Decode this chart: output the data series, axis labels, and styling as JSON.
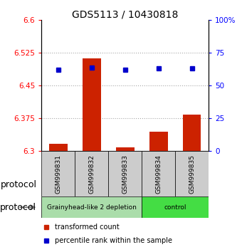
{
  "title": "GDS5113 / 10430818",
  "samples": [
    "GSM999831",
    "GSM999832",
    "GSM999833",
    "GSM999834",
    "GSM999835"
  ],
  "transformed_counts": [
    6.317,
    6.513,
    6.308,
    6.345,
    6.383
  ],
  "percentile_ranks": [
    62,
    64,
    62,
    63,
    63
  ],
  "ylim_left": [
    6.3,
    6.6
  ],
  "ylim_right": [
    0,
    100
  ],
  "yticks_left": [
    6.3,
    6.375,
    6.45,
    6.525,
    6.6
  ],
  "yticks_right": [
    0,
    25,
    50,
    75,
    100
  ],
  "ytick_labels_left": [
    "6.3",
    "6.375",
    "6.45",
    "6.525",
    "6.6"
  ],
  "ytick_labels_right": [
    "0",
    "25",
    "50",
    "75",
    "100%"
  ],
  "groups": [
    {
      "label": "Grainyhead-like 2 depletion",
      "indices": [
        0,
        1,
        2
      ],
      "color": "#aaddaa"
    },
    {
      "label": "control",
      "indices": [
        3,
        4
      ],
      "color": "#44dd44"
    }
  ],
  "bar_color": "#cc2200",
  "dot_color": "#0000cc",
  "bar_width": 0.55,
  "sample_bg_color": "#cccccc",
  "title_fontsize": 10,
  "tick_fontsize": 7.5,
  "sample_fontsize": 6.5,
  "group_fontsize": 6.5,
  "legend_fontsize": 7,
  "protocol_fontsize": 9,
  "legend_items": [
    {
      "color": "#cc2200",
      "label": "transformed count"
    },
    {
      "color": "#0000cc",
      "label": "percentile rank within the sample"
    }
  ]
}
